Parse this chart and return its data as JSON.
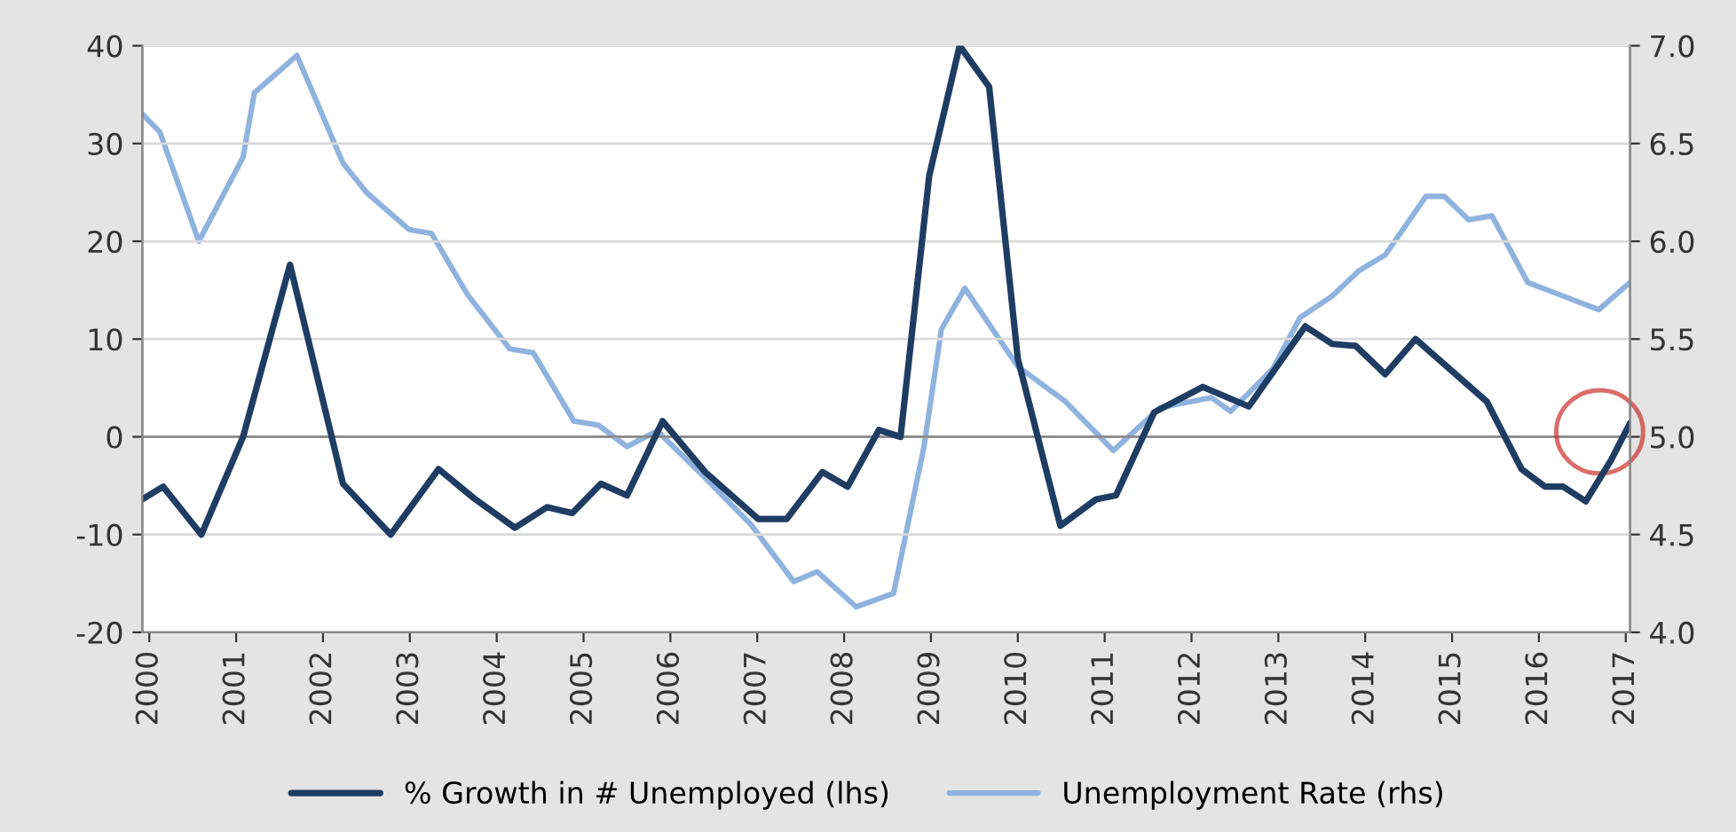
{
  "chart_data": {
    "type": "line",
    "xlim": [
      1999.92,
      2017.05
    ],
    "xticks": [
      2000,
      2001,
      2002,
      2003,
      2004,
      2005,
      2006,
      2007,
      2008,
      2009,
      2010,
      2011,
      2012,
      2013,
      2014,
      2015,
      2016,
      2017
    ],
    "ylim": [
      -20,
      40
    ],
    "yticks": [
      -20,
      -10,
      0,
      10,
      20,
      30,
      40
    ],
    "y2lim": [
      4.0,
      7.0
    ],
    "y2ticks": [
      {
        "value": 4.0,
        "label": "4.0"
      },
      {
        "value": 4.5,
        "label": "4.5"
      },
      {
        "value": 5.0,
        "label": "5.0"
      },
      {
        "value": 5.5,
        "label": "5.5"
      },
      {
        "value": 6.0,
        "label": "6.0"
      },
      {
        "value": 6.5,
        "label": "6.5"
      },
      {
        "value": 7.0,
        "label": "7.0"
      }
    ],
    "grid": "y",
    "legend": "bottom",
    "line_style": "solid",
    "series": [
      {
        "name": "% Growth in # Unemployed (lhs)",
        "color": "#1f3d63",
        "x": [
          1999.92,
          2000.16,
          2000.6,
          2001.08,
          2001.62,
          2002.1,
          2002.23,
          2002.78,
          2003.33,
          2003.74,
          2004.21,
          2004.58,
          2004.87,
          2005.2,
          2005.5,
          2005.91,
          2006.4,
          2007.01,
          2007.34,
          2007.75,
          2008.04,
          2008.4,
          2008.65,
          2008.98,
          2009.33,
          2009.67,
          2010.0,
          2010.49,
          2010.9,
          2011.13,
          2011.57,
          2012.13,
          2012.66,
          2013.31,
          2013.62,
          2013.89,
          2014.23,
          2014.58,
          2015.4,
          2015.8,
          2016.07,
          2016.28,
          2016.54,
          2016.83,
          2017.05
        ],
        "values": [
          -6.4,
          -5.1,
          -10,
          0,
          17.6,
          0,
          -4.8,
          -10,
          -3.3,
          -6.3,
          -9.3,
          -7.2,
          -7.8,
          -4.8,
          -6,
          1.6,
          -3.6,
          -8.4,
          -8.4,
          -3.6,
          -5.1,
          0.7,
          0,
          26.7,
          40,
          35.8,
          8,
          -9.1,
          -6.4,
          -6,
          2.5,
          5.1,
          3.1,
          11.3,
          9.5,
          9.3,
          6.4,
          10,
          3.6,
          -3.3,
          -5.1,
          -5.1,
          -6.6,
          -2.4,
          1.4
        ]
      },
      {
        "name": "Unemployment Rate (rhs)",
        "color": "#8fb3de",
        "axis": "y2",
        "x": [
          1999.92,
          2000.12,
          2000.57,
          2001.08,
          2001.21,
          2001.7,
          2002.23,
          2002.5,
          2002.99,
          2003.25,
          2003.66,
          2004.15,
          2004.42,
          2004.89,
          2005.17,
          2005.5,
          2005.85,
          2006.4,
          2006.93,
          2007.42,
          2007.69,
          2008.14,
          2008.57,
          2008.92,
          2009.12,
          2009.39,
          2010.0,
          2010.55,
          2011.1,
          2011.64,
          2012.23,
          2012.45,
          2012.94,
          2013.25,
          2013.62,
          2013.93,
          2014.23,
          2014.7,
          2014.91,
          2015.19,
          2015.46,
          2015.87,
          2016.28,
          2016.69,
          2017.05
        ],
        "values": [
          6.65,
          6.56,
          6.0,
          6.43,
          6.76,
          6.95,
          6.4,
          6.25,
          6.06,
          6.04,
          5.73,
          5.45,
          5.43,
          5.08,
          5.06,
          4.95,
          5.03,
          4.79,
          4.55,
          4.26,
          4.31,
          4.13,
          4.2,
          4.95,
          5.55,
          5.76,
          5.36,
          5.18,
          4.93,
          5.15,
          5.2,
          5.13,
          5.35,
          5.61,
          5.72,
          5.85,
          5.93,
          6.23,
          6.23,
          6.11,
          6.13,
          5.79,
          5.72,
          5.65,
          5.79
        ]
      }
    ]
  }
}
